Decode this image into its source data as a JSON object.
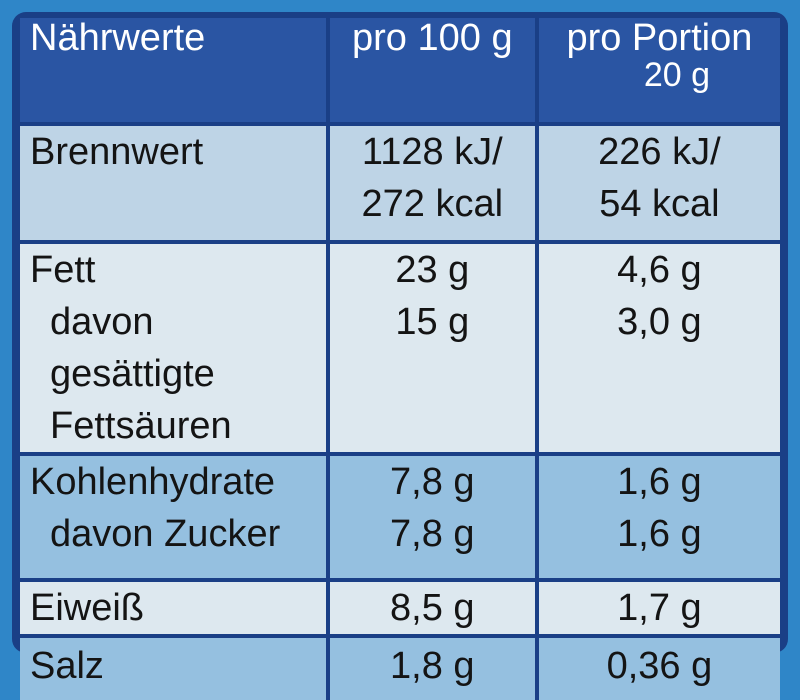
{
  "header": {
    "label": "Nährwerte",
    "per100": "pro 100 g",
    "perPortion": "pro Portion",
    "portionSize": "20 g"
  },
  "rows": [
    {
      "label": "Brennwert",
      "per100": [
        "1128 kJ/",
        "272 kcal"
      ],
      "perPortion": [
        "226 kJ/",
        "54 kcal"
      ]
    },
    {
      "label": "Fett",
      "per100": "23 g",
      "perPortion": "4,6 g",
      "sub": {
        "label": [
          "davon gesättigte",
          "Fettsäuren"
        ],
        "per100": "15 g",
        "perPortion": "3,0 g"
      }
    },
    {
      "label": "Kohlenhydrate",
      "per100": "7,8 g",
      "perPortion": "1,6 g",
      "sub": {
        "label": "davon Zucker",
        "per100": "7,8 g",
        "perPortion": "1,6 g"
      }
    },
    {
      "label": "Eiweiß",
      "per100": "8,5 g",
      "perPortion": "1,7 g"
    },
    {
      "label": "Salz",
      "per100": "1,8 g",
      "perPortion": "0,36 g"
    }
  ],
  "colors": {
    "frame": "#1a3f86",
    "header": "#2a55a3",
    "rowLight": "#dde8ef",
    "rowMid": "#bed4e6",
    "rowBlue": "#95c0e0",
    "background": "#2f86c8"
  }
}
